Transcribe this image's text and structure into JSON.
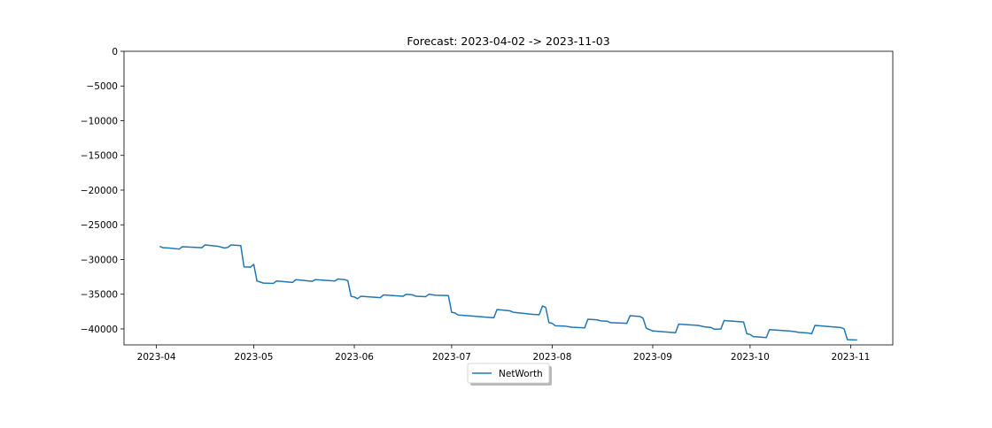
{
  "chart_data": {
    "type": "line",
    "title": "Forecast: 2023-04-02 -> 2023-11-03",
    "xlabel": "",
    "ylabel": "",
    "ylim": [
      -42300,
      0
    ],
    "xlim": [
      "2023-03-22",
      "2023-11-14"
    ],
    "grid": false,
    "legend_position": "bottom-center",
    "yticks": [
      0,
      -5000,
      -10000,
      -15000,
      -20000,
      -25000,
      -30000,
      -35000,
      -40000
    ],
    "ytick_labels": [
      "0",
      "−5000",
      "−10000",
      "−15000",
      "−20000",
      "−25000",
      "−30000",
      "−35000",
      "−40000"
    ],
    "xticks": [
      "2023-04-01",
      "2023-05-01",
      "2023-06-01",
      "2023-07-01",
      "2023-08-01",
      "2023-09-01",
      "2023-10-01",
      "2023-11-01"
    ],
    "xtick_labels": [
      "2023-04",
      "2023-05",
      "2023-06",
      "2023-07",
      "2023-08",
      "2023-09",
      "2023-10",
      "2023-11"
    ],
    "series": [
      {
        "name": "NetWorth",
        "color": "#1f77b4",
        "points": [
          [
            "2023-04-02",
            -28100
          ],
          [
            "2023-04-03",
            -28300
          ],
          [
            "2023-04-05",
            -28350
          ],
          [
            "2023-04-08",
            -28500
          ],
          [
            "2023-04-09",
            -28150
          ],
          [
            "2023-04-15",
            -28300
          ],
          [
            "2023-04-16",
            -27900
          ],
          [
            "2023-04-20",
            -28100
          ],
          [
            "2023-04-22",
            -28350
          ],
          [
            "2023-04-23",
            -28250
          ],
          [
            "2023-04-24",
            -27900
          ],
          [
            "2023-04-27",
            -28000
          ],
          [
            "2023-04-28",
            -31050
          ],
          [
            "2023-04-30",
            -31100
          ],
          [
            "2023-05-01",
            -30700
          ],
          [
            "2023-05-02",
            -33100
          ],
          [
            "2023-05-04",
            -33400
          ],
          [
            "2023-05-07",
            -33450
          ],
          [
            "2023-05-08",
            -33100
          ],
          [
            "2023-05-13",
            -33300
          ],
          [
            "2023-05-14",
            -32900
          ],
          [
            "2023-05-16",
            -33000
          ],
          [
            "2023-05-19",
            -33150
          ],
          [
            "2023-05-20",
            -32900
          ],
          [
            "2023-05-26",
            -33100
          ],
          [
            "2023-05-27",
            -32800
          ],
          [
            "2023-05-29",
            -32900
          ],
          [
            "2023-05-30",
            -33050
          ],
          [
            "2023-05-31",
            -35300
          ],
          [
            "2023-06-01",
            -35400
          ],
          [
            "2023-06-02",
            -35650
          ],
          [
            "2023-06-03",
            -35300
          ],
          [
            "2023-06-09",
            -35500
          ],
          [
            "2023-06-10",
            -35100
          ],
          [
            "2023-06-16",
            -35300
          ],
          [
            "2023-06-17",
            -35000
          ],
          [
            "2023-06-19",
            -35100
          ],
          [
            "2023-06-20",
            -35300
          ],
          [
            "2023-06-23",
            -35350
          ],
          [
            "2023-06-24",
            -35000
          ],
          [
            "2023-06-26",
            -35150
          ],
          [
            "2023-06-30",
            -35200
          ],
          [
            "2023-07-01",
            -37600
          ],
          [
            "2023-07-02",
            -37700
          ],
          [
            "2023-07-03",
            -38000
          ],
          [
            "2023-07-06",
            -38100
          ],
          [
            "2023-07-14",
            -38400
          ],
          [
            "2023-07-15",
            -37200
          ],
          [
            "2023-07-19",
            -37400
          ],
          [
            "2023-07-20",
            -37600
          ],
          [
            "2023-07-26",
            -37900
          ],
          [
            "2023-07-28",
            -37950
          ],
          [
            "2023-07-29",
            -36700
          ],
          [
            "2023-07-30",
            -36900
          ],
          [
            "2023-07-31",
            -39100
          ],
          [
            "2023-08-01",
            -39200
          ],
          [
            "2023-08-02",
            -39550
          ],
          [
            "2023-08-05",
            -39600
          ],
          [
            "2023-08-07",
            -39750
          ],
          [
            "2023-08-11",
            -39850
          ],
          [
            "2023-08-12",
            -38600
          ],
          [
            "2023-08-15",
            -38700
          ],
          [
            "2023-08-16",
            -38850
          ],
          [
            "2023-08-18",
            -38900
          ],
          [
            "2023-08-19",
            -39100
          ],
          [
            "2023-08-24",
            -39200
          ],
          [
            "2023-08-25",
            -38100
          ],
          [
            "2023-08-28",
            -38200
          ],
          [
            "2023-08-29",
            -38450
          ],
          [
            "2023-08-30",
            -39900
          ],
          [
            "2023-08-31",
            -40100
          ],
          [
            "2023-09-01",
            -40300
          ],
          [
            "2023-09-08",
            -40550
          ],
          [
            "2023-09-09",
            -39300
          ],
          [
            "2023-09-15",
            -39500
          ],
          [
            "2023-09-17",
            -39700
          ],
          [
            "2023-09-19",
            -39800
          ],
          [
            "2023-09-20",
            -40050
          ],
          [
            "2023-09-22",
            -40000
          ],
          [
            "2023-09-23",
            -38800
          ],
          [
            "2023-09-29",
            -39000
          ],
          [
            "2023-09-30",
            -40700
          ],
          [
            "2023-10-01",
            -40800
          ],
          [
            "2023-10-02",
            -41100
          ],
          [
            "2023-10-06",
            -41250
          ],
          [
            "2023-10-07",
            -40100
          ],
          [
            "2023-10-13",
            -40300
          ],
          [
            "2023-10-15",
            -40400
          ],
          [
            "2023-10-16",
            -40500
          ],
          [
            "2023-10-19",
            -40600
          ],
          [
            "2023-10-20",
            -40700
          ],
          [
            "2023-10-21",
            -39500
          ],
          [
            "2023-10-29",
            -39800
          ],
          [
            "2023-10-30",
            -40000
          ],
          [
            "2023-10-31",
            -41550
          ],
          [
            "2023-11-03",
            -41600
          ]
        ]
      }
    ]
  }
}
